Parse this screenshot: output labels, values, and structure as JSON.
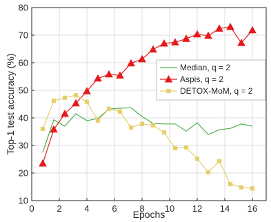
{
  "chart_data": {
    "type": "line",
    "title": "",
    "xlabel": "Epochs",
    "ylabel": "Top-1 test accuracy (%)",
    "xlim": [
      0,
      17
    ],
    "ylim": [
      10,
      80
    ],
    "xticks": [
      0,
      2,
      4,
      6,
      8,
      10,
      12,
      14,
      16
    ],
    "yticks": [
      10,
      20,
      30,
      40,
      50,
      60,
      70,
      80
    ],
    "grid": true,
    "legend_position": "center-right",
    "series": [
      {
        "name": "Median, q = 2",
        "color": "#4daf4a",
        "marker": "none",
        "x": [
          0.8,
          1.6,
          2.4,
          3.2,
          4.0,
          4.8,
          5.6,
          6.4,
          7.2,
          8.0,
          8.8,
          9.6,
          10.4,
          11.2,
          12.0,
          12.8,
          13.6,
          14.4,
          15.2,
          16.0
        ],
        "y": [
          27.5,
          39.3,
          37.0,
          41.5,
          39.0,
          39.8,
          43.2,
          43.5,
          43.7,
          40.5,
          38.0,
          37.8,
          37.8,
          35.2,
          38.2,
          34.0,
          35.7,
          36.2,
          37.8,
          37.0
        ]
      },
      {
        "name": "Aspis, q = 2",
        "color": "#e41a1c",
        "marker": "triangle",
        "x": [
          0.8,
          1.6,
          2.4,
          3.2,
          4.0,
          4.8,
          5.6,
          6.4,
          7.2,
          8.0,
          8.8,
          9.6,
          10.4,
          11.2,
          12.0,
          12.8,
          13.6,
          14.4,
          15.2,
          16.0
        ],
        "y": [
          23.5,
          35.8,
          41.5,
          45.3,
          49.7,
          54.3,
          55.8,
          55.4,
          59.8,
          61.3,
          64.8,
          67.0,
          67.4,
          68.7,
          70.3,
          69.8,
          72.4,
          73.0,
          67.2,
          71.8
        ]
      },
      {
        "name": "DETOX-MoM, q = 2",
        "color": "#e6cf6e",
        "marker": "square",
        "x": [
          0.8,
          1.6,
          2.4,
          3.2,
          4.0,
          4.8,
          5.6,
          6.4,
          7.2,
          8.0,
          8.8,
          9.6,
          10.4,
          11.2,
          12.0,
          12.8,
          13.6,
          14.4,
          15.2,
          16.0
        ],
        "y": [
          36.0,
          46.2,
          47.3,
          48.2,
          45.8,
          39.0,
          43.3,
          42.3,
          36.5,
          37.8,
          37.3,
          34.7,
          29.0,
          29.3,
          25.2,
          20.3,
          24.3,
          16.0,
          14.8,
          14.4
        ]
      }
    ]
  }
}
